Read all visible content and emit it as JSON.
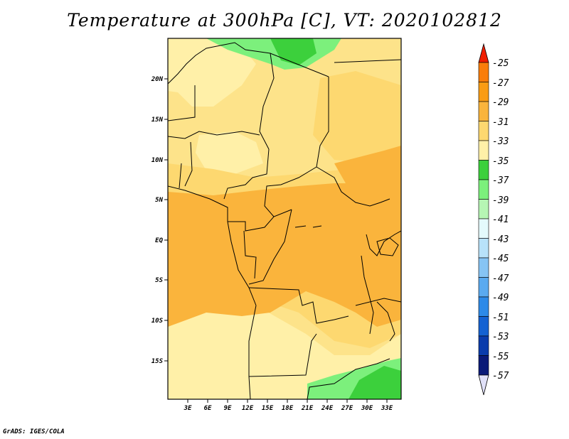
{
  "title": "Temperature at 300hPa [C], VT: 2020102812",
  "credit": "GrADS: IGES/COLA",
  "map": {
    "lat_labels": [
      "20N",
      "15N",
      "10N",
      "5N",
      "EQ",
      "5S",
      "10S",
      "15S"
    ],
    "lon_labels": [
      "3E",
      "6E",
      "9E",
      "12E",
      "15E",
      "18E",
      "21E",
      "24E",
      "27E",
      "30E",
      "33E"
    ],
    "field_colors": {
      "cool_green": "#7cf07c",
      "mid_green": "#3cd03c",
      "pale_yellow": "#fff0a8",
      "light_yellow": "#fde38a",
      "yellow_orange": "#fdd870",
      "orange": "#fab43c"
    }
  },
  "legend": {
    "labels": [
      "-25",
      "-27",
      "-29",
      "-31",
      "-33",
      "-35",
      "-37",
      "-39",
      "-41",
      "-43",
      "-45",
      "-47",
      "-49",
      "-51",
      "-53",
      "-55",
      "-57"
    ],
    "colors": [
      "#f44418",
      "#fa7d0a",
      "#fa9c14",
      "#fab43c",
      "#fdd870",
      "#fff0a8",
      "#3cd03c",
      "#7cf07c",
      "#b6f6b4",
      "#e4fafc",
      "#b8e2fa",
      "#86c4f4",
      "#5aaaf0",
      "#2d8ae8",
      "#1462d2",
      "#0a3cac",
      "#0a1a78"
    ],
    "top_arrow_color": "#f01e00",
    "bottom_arrow_color": "#e0e0f8"
  }
}
